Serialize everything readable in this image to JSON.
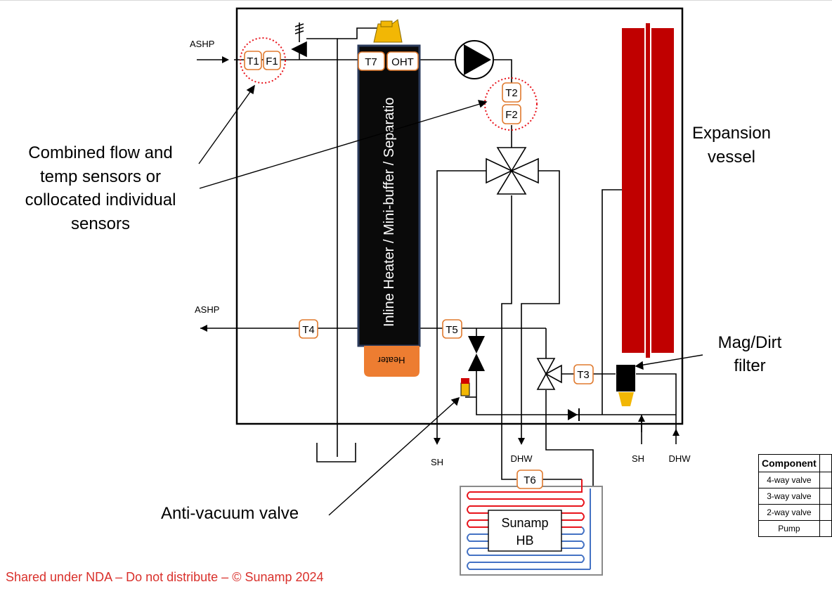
{
  "sensors": {
    "t1": "T1",
    "f1": "F1",
    "t7": "T7",
    "oht": "OHT",
    "t2": "T2",
    "f2": "F2",
    "t4": "T4",
    "t5": "T5",
    "t3": "T3",
    "t6": "T6"
  },
  "labels": {
    "ashp_in": "ASHP",
    "ashp_out": "ASHP",
    "inline_heater": "Inline Heater / Mini-buffer / Separatio",
    "heater": "Heater",
    "expansion_vessel_line1": "Expansion",
    "expansion_vessel_line2": "vessel",
    "mag_filter_line1": "Mag/Dirt",
    "mag_filter_line2": "filter",
    "combined_line1": "Combined flow and",
    "combined_line2": "temp sensors or",
    "combined_line3": "collocated individual",
    "combined_line4": "sensors",
    "anti_vacuum": "Anti-vacuum valve",
    "sh_left": "SH",
    "dhw_mid": "DHW",
    "sh_right": "SH",
    "dhw_right": "DHW",
    "sunamp_line1": "Sunamp",
    "sunamp_line2": "HB"
  },
  "footer": "Shared under NDA – Do not distribute – © Sunamp 2024",
  "table": {
    "header": "Component",
    "rows": [
      "4-way valve",
      "3-way valve",
      "2-way valve",
      "Pump"
    ]
  },
  "colors": {
    "sensor_border": "#e07a2e",
    "heater_orange": "#ed7d31",
    "vessel_red": "#c00000",
    "coil_red": "#e8141c",
    "coil_blue": "#4472c4",
    "valve_yellow": "#f2b705",
    "footer_red": "#d9302b"
  }
}
